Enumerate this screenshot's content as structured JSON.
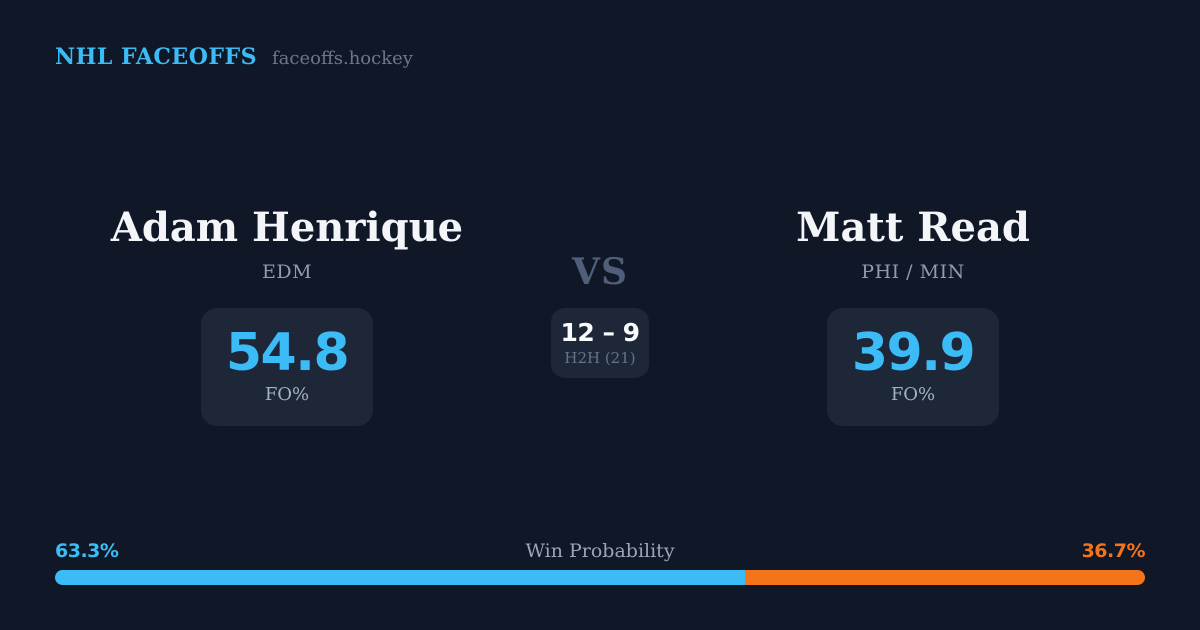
{
  "theme": {
    "background": "#101726",
    "card_bg": "#1d2737",
    "accent_blue": "#3bbcf6",
    "accent_orange": "#f5731a",
    "text_primary": "#f3f5f8",
    "text_muted": "#8e9bb0",
    "vs_color": "#505f79",
    "h2h_label_color": "#66738a",
    "stat_label_color": "#a3b1c3",
    "wp_label_color": "#9aa5b5",
    "site_color": "#6d7887"
  },
  "header": {
    "brand": "NHL FACEOFFS",
    "site": "faceoffs.hockey"
  },
  "matchup": {
    "player_left": {
      "name": "Adam Henrique",
      "team": "EDM",
      "stat_value": "54.8",
      "stat_label": "FO%"
    },
    "vs_label": "VS",
    "h2h": {
      "score": "12 – 9",
      "label": "H2H (21)"
    },
    "player_right": {
      "name": "Matt Read",
      "team": "PHI / MIN",
      "stat_value": "39.9",
      "stat_label": "FO%"
    }
  },
  "win_probability": {
    "label": "Win Probability",
    "left_pct": "63.3%",
    "right_pct": "36.7%",
    "left_value": 63.3,
    "right_value": 36.7
  }
}
